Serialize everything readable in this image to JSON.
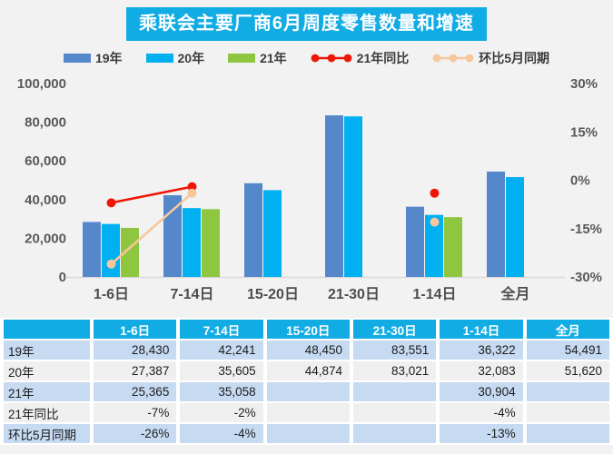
{
  "title": "乘联会主要厂商6月周度零售数量和增速",
  "colors": {
    "accent_cyan": "#12ace4",
    "bar_blue": "#5588cb",
    "bar_cyan": "#00b0f0",
    "bar_green": "#8ec63f",
    "line_red": "#ee1605",
    "line_peach": "#f6c79c",
    "axis_text": "#595959",
    "baseline": "#d9d9d9",
    "row_blue": "#c6daf1",
    "row_light": "#efefef"
  },
  "chart_data": {
    "type": "combo bar+line",
    "title": "乘联会主要厂商6月周度零售数量和增速",
    "categories": [
      "1-6日",
      "7-14日",
      "15-20日",
      "21-30日",
      "1-14日",
      "全月"
    ],
    "bar_series": [
      {
        "name": "19年",
        "color": "#5588cb",
        "values": [
          28430,
          42241,
          48450,
          83551,
          36322,
          54491
        ]
      },
      {
        "name": "20年",
        "color": "#00b0f0",
        "values": [
          27387,
          35605,
          44874,
          83021,
          32083,
          51620
        ]
      },
      {
        "name": "21年",
        "color": "#8ec63f",
        "values": [
          25365,
          35058,
          null,
          null,
          30904,
          null
        ]
      }
    ],
    "line_series": [
      {
        "name": "21年同比",
        "color": "#ee1605",
        "axis": "right",
        "values": [
          -7,
          -2,
          null,
          null,
          -4,
          null
        ]
      },
      {
        "name": "环比5月同期",
        "color": "#f6c79c",
        "axis": "right",
        "values": [
          -26,
          -4,
          null,
          null,
          -13,
          null
        ]
      }
    ],
    "left_axis": {
      "min": 0,
      "max": 100000,
      "step": 20000,
      "labels": [
        "0",
        "20,000",
        "40,000",
        "60,000",
        "80,000",
        "100,000"
      ]
    },
    "right_axis": {
      "min": -30,
      "max": 30,
      "step": 15,
      "labels": [
        "-30%",
        "-15%",
        "0%",
        "15%",
        "30%"
      ]
    },
    "grid": false,
    "legend_position": "top"
  },
  "table": {
    "header": [
      "",
      "1-6日",
      "7-14日",
      "15-20日",
      "21-30日",
      "1-14日",
      "全月"
    ],
    "rows": [
      {
        "label": "19年",
        "values": [
          "28,430",
          "42,241",
          "48,450",
          "83,551",
          "36,322",
          "54,491"
        ]
      },
      {
        "label": "20年",
        "values": [
          "27,387",
          "35,605",
          "44,874",
          "83,021",
          "32,083",
          "51,620"
        ]
      },
      {
        "label": "21年",
        "values": [
          "25,365",
          "35,058",
          "",
          "",
          "30,904",
          ""
        ]
      },
      {
        "label": "21年同比",
        "values": [
          "-7%",
          "-2%",
          "",
          "",
          "-4%",
          ""
        ]
      },
      {
        "label": "环比5月同期",
        "values": [
          "-26%",
          "-4%",
          "",
          "",
          "-13%",
          ""
        ]
      }
    ]
  }
}
